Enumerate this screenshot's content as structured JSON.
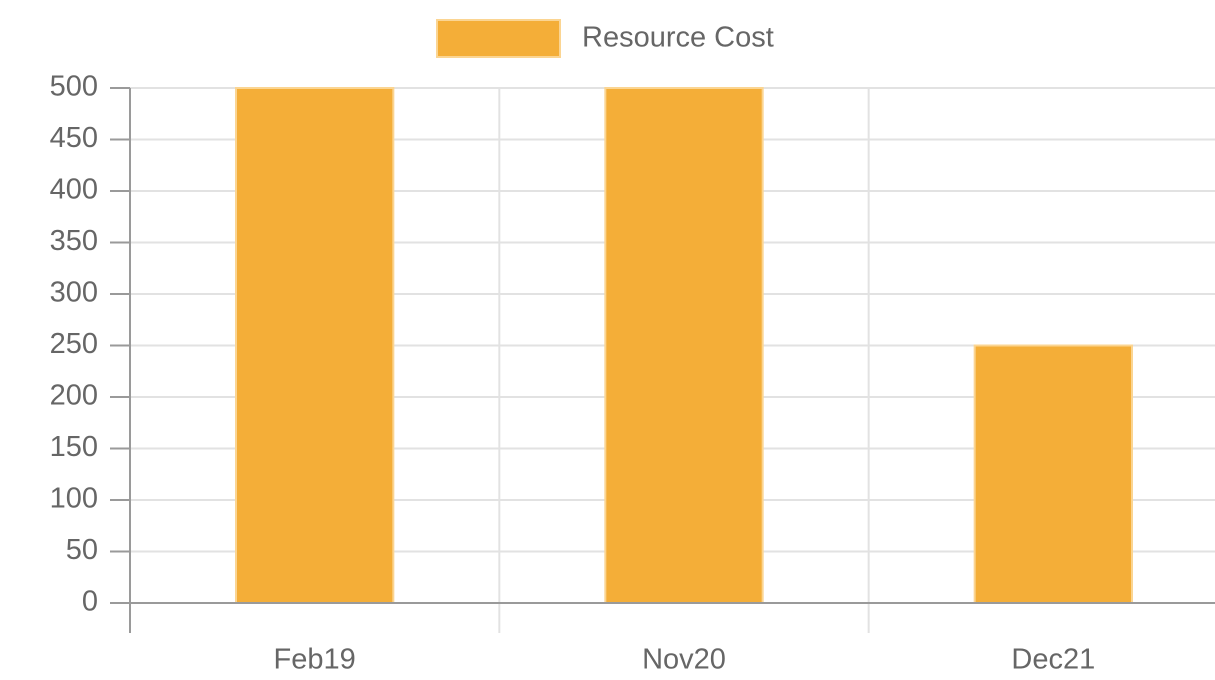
{
  "chart_data": {
    "type": "bar",
    "categories": [
      "Feb19",
      "Nov20",
      "Dec21"
    ],
    "series": [
      {
        "name": "Resource Cost",
        "color": "#f4ae38",
        "values": [
          500,
          500,
          250
        ]
      }
    ],
    "ylim": [
      0,
      500
    ],
    "yticks": [
      0,
      50,
      100,
      150,
      200,
      250,
      300,
      350,
      400,
      450,
      500
    ],
    "grid": true,
    "legend": "top"
  }
}
